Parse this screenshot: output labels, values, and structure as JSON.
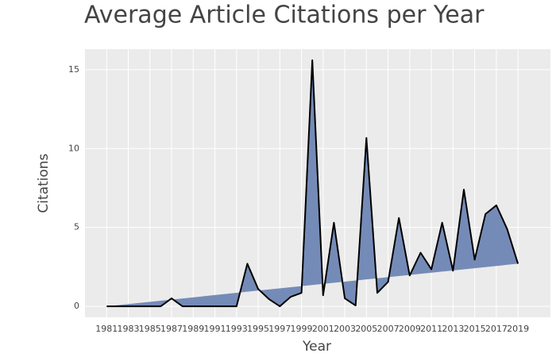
{
  "chart_data": {
    "type": "area",
    "title": "Average Article Citations per Year",
    "x_label": "Year",
    "y_label": "Citations",
    "x": [
      1981,
      1982,
      1983,
      1984,
      1985,
      1986,
      1987,
      1988,
      1989,
      1990,
      1991,
      1992,
      1993,
      1994,
      1995,
      1996,
      1997,
      1998,
      1999,
      2000,
      2001,
      2002,
      2003,
      2004,
      2005,
      2006,
      2007,
      2008,
      2009,
      2010,
      2011,
      2012,
      2013,
      2014,
      2015,
      2016,
      2017,
      2018,
      2019
    ],
    "series": [
      {
        "name": "Citations",
        "color": "#6f86b4",
        "line_color": "#000000",
        "values": [
          0,
          0,
          0,
          0,
          0,
          0,
          0.5,
          0,
          0,
          0,
          0,
          0,
          0,
          2.7,
          1.1,
          0.45,
          0,
          0.6,
          0.85,
          15.6,
          0.7,
          5.3,
          0.5,
          0.05,
          10.67,
          0.85,
          1.55,
          5.6,
          1.95,
          3.4,
          2.35,
          5.3,
          2.25,
          7.4,
          2.95,
          5.85,
          6.4,
          4.9,
          2.7
        ]
      }
    ],
    "xlim": [
      1979,
      2022
    ],
    "ylim": [
      -0.7,
      16.3
    ],
    "xticks": [
      1981,
      1983,
      1985,
      1987,
      1989,
      1991,
      1993,
      1995,
      1997,
      1999,
      2001,
      2003,
      2005,
      2007,
      2009,
      2011,
      2013,
      2015,
      2017,
      2019
    ],
    "yticks": [
      0,
      5,
      10,
      15
    ],
    "grid": true
  }
}
